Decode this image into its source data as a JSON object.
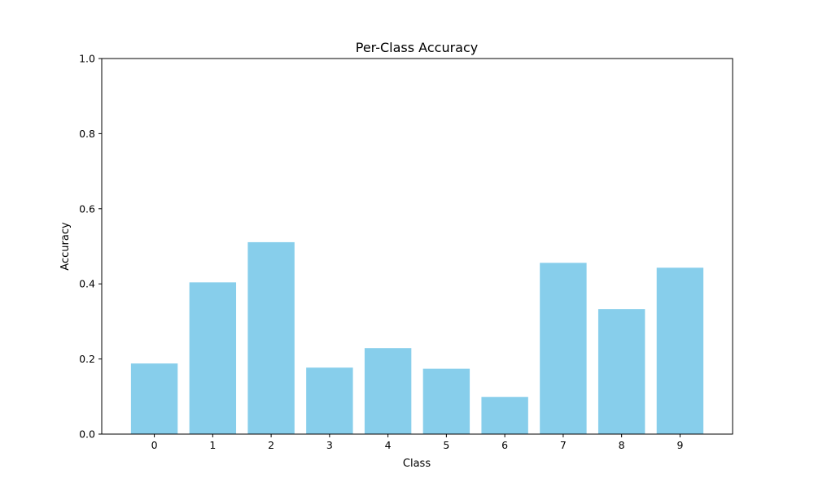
{
  "chart_data": {
    "type": "bar",
    "title": "Per-Class Accuracy",
    "xlabel": "Class",
    "ylabel": "Accuracy",
    "categories": [
      "0",
      "1",
      "2",
      "3",
      "4",
      "5",
      "6",
      "7",
      "8",
      "9"
    ],
    "values": [
      0.188,
      0.404,
      0.511,
      0.177,
      0.229,
      0.174,
      0.099,
      0.456,
      0.333,
      0.443
    ],
    "ylim": [
      0,
      1.0
    ],
    "yticks": [
      "0.0",
      "0.2",
      "0.4",
      "0.6",
      "0.8",
      "1.0"
    ],
    "bar_color": "#87CEEB",
    "grid": false
  }
}
